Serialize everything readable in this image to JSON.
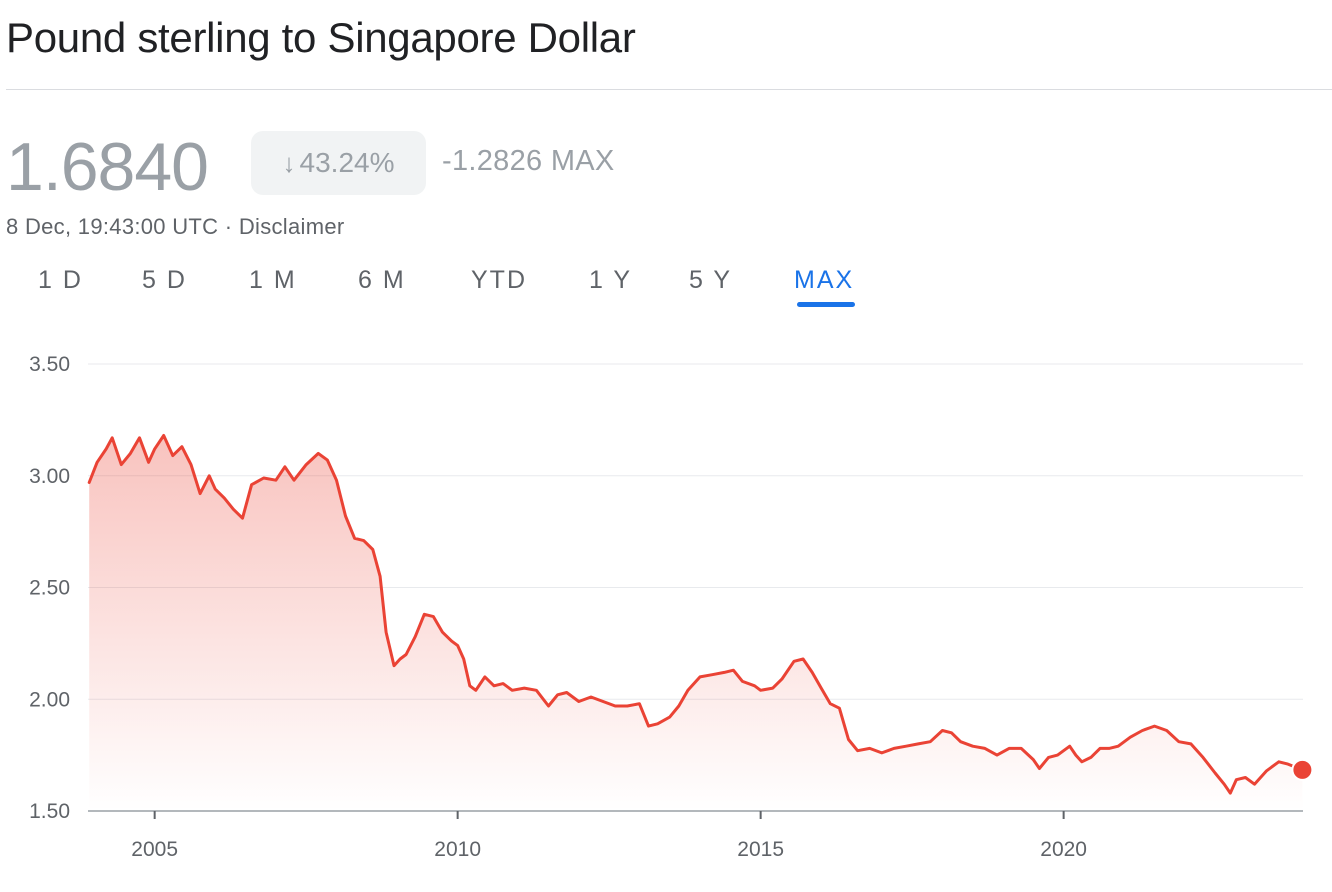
{
  "header": {
    "title": "Pound sterling to Singapore Dollar"
  },
  "quote": {
    "price": "1.6840",
    "arrow_icon": "arrow-down-icon",
    "percent_change": "43.24%",
    "abs_change": "-1.2826 MAX",
    "timestamp": "8 Dec, 19:43:00 UTC",
    "separator": " · ",
    "disclaimer": "Disclaimer"
  },
  "tabs": [
    {
      "label": "1 D"
    },
    {
      "label": "5 D"
    },
    {
      "label": "1 M"
    },
    {
      "label": "6 M"
    },
    {
      "label": "YTD"
    },
    {
      "label": "1 Y"
    },
    {
      "label": "5 Y"
    },
    {
      "label": "MAX",
      "active": true
    }
  ],
  "colors": {
    "line": "#ea4335",
    "accent": "#1a73e8",
    "muted": "#9aa0a6"
  },
  "chart_data": {
    "type": "area",
    "title": "",
    "xlabel": "",
    "ylabel": "",
    "ylim": [
      1.5,
      3.5
    ],
    "xlim": [
      2003.9,
      2023.95
    ],
    "yticks": [
      "3.50",
      "3.00",
      "2.50",
      "2.00",
      "1.50"
    ],
    "xticks": [
      "2005",
      "2010",
      "2015",
      "2020"
    ],
    "grid": true,
    "series": [
      {
        "points": [
          [
            2003.92,
            2.97
          ],
          [
            2004.05,
            3.06
          ],
          [
            2004.2,
            3.12
          ],
          [
            2004.3,
            3.17
          ],
          [
            2004.45,
            3.05
          ],
          [
            2004.6,
            3.1
          ],
          [
            2004.75,
            3.17
          ],
          [
            2004.9,
            3.06
          ],
          [
            2005.0,
            3.12
          ],
          [
            2005.15,
            3.18
          ],
          [
            2005.3,
            3.09
          ],
          [
            2005.45,
            3.13
          ],
          [
            2005.6,
            3.05
          ],
          [
            2005.75,
            2.92
          ],
          [
            2005.9,
            3.0
          ],
          [
            2006.0,
            2.94
          ],
          [
            2006.15,
            2.9
          ],
          [
            2006.3,
            2.85
          ],
          [
            2006.45,
            2.81
          ],
          [
            2006.6,
            2.96
          ],
          [
            2006.8,
            2.99
          ],
          [
            2007.0,
            2.98
          ],
          [
            2007.15,
            3.04
          ],
          [
            2007.3,
            2.98
          ],
          [
            2007.5,
            3.05
          ],
          [
            2007.7,
            3.1
          ],
          [
            2007.85,
            3.07
          ],
          [
            2008.0,
            2.98
          ],
          [
            2008.15,
            2.82
          ],
          [
            2008.3,
            2.72
          ],
          [
            2008.45,
            2.71
          ],
          [
            2008.6,
            2.67
          ],
          [
            2008.72,
            2.55
          ],
          [
            2008.82,
            2.3
          ],
          [
            2008.95,
            2.15
          ],
          [
            2009.05,
            2.18
          ],
          [
            2009.15,
            2.2
          ],
          [
            2009.3,
            2.28
          ],
          [
            2009.45,
            2.38
          ],
          [
            2009.6,
            2.37
          ],
          [
            2009.75,
            2.3
          ],
          [
            2009.9,
            2.26
          ],
          [
            2010.0,
            2.24
          ],
          [
            2010.1,
            2.18
          ],
          [
            2010.2,
            2.06
          ],
          [
            2010.3,
            2.04
          ],
          [
            2010.45,
            2.1
          ],
          [
            2010.6,
            2.06
          ],
          [
            2010.75,
            2.07
          ],
          [
            2010.9,
            2.04
          ],
          [
            2011.1,
            2.05
          ],
          [
            2011.3,
            2.04
          ],
          [
            2011.5,
            1.97
          ],
          [
            2011.65,
            2.02
          ],
          [
            2011.8,
            2.03
          ],
          [
            2012.0,
            1.99
          ],
          [
            2012.2,
            2.01
          ],
          [
            2012.4,
            1.99
          ],
          [
            2012.6,
            1.97
          ],
          [
            2012.8,
            1.97
          ],
          [
            2013.0,
            1.98
          ],
          [
            2013.15,
            1.88
          ],
          [
            2013.3,
            1.89
          ],
          [
            2013.5,
            1.92
          ],
          [
            2013.65,
            1.97
          ],
          [
            2013.8,
            2.04
          ],
          [
            2014.0,
            2.1
          ],
          [
            2014.2,
            2.11
          ],
          [
            2014.4,
            2.12
          ],
          [
            2014.55,
            2.13
          ],
          [
            2014.7,
            2.08
          ],
          [
            2014.9,
            2.06
          ],
          [
            2015.0,
            2.04
          ],
          [
            2015.2,
            2.05
          ],
          [
            2015.35,
            2.09
          ],
          [
            2015.55,
            2.17
          ],
          [
            2015.7,
            2.18
          ],
          [
            2015.85,
            2.12
          ],
          [
            2016.0,
            2.05
          ],
          [
            2016.15,
            1.98
          ],
          [
            2016.3,
            1.96
          ],
          [
            2016.45,
            1.82
          ],
          [
            2016.6,
            1.77
          ],
          [
            2016.8,
            1.78
          ],
          [
            2017.0,
            1.76
          ],
          [
            2017.2,
            1.78
          ],
          [
            2017.4,
            1.79
          ],
          [
            2017.6,
            1.8
          ],
          [
            2017.8,
            1.81
          ],
          [
            2018.0,
            1.86
          ],
          [
            2018.15,
            1.85
          ],
          [
            2018.3,
            1.81
          ],
          [
            2018.5,
            1.79
          ],
          [
            2018.7,
            1.78
          ],
          [
            2018.9,
            1.75
          ],
          [
            2019.1,
            1.78
          ],
          [
            2019.3,
            1.78
          ],
          [
            2019.5,
            1.73
          ],
          [
            2019.6,
            1.69
          ],
          [
            2019.75,
            1.74
          ],
          [
            2019.9,
            1.75
          ],
          [
            2020.1,
            1.79
          ],
          [
            2020.2,
            1.75
          ],
          [
            2020.3,
            1.72
          ],
          [
            2020.45,
            1.74
          ],
          [
            2020.6,
            1.78
          ],
          [
            2020.75,
            1.78
          ],
          [
            2020.9,
            1.79
          ],
          [
            2021.1,
            1.83
          ],
          [
            2021.3,
            1.86
          ],
          [
            2021.5,
            1.88
          ],
          [
            2021.7,
            1.86
          ],
          [
            2021.9,
            1.81
          ],
          [
            2022.1,
            1.8
          ],
          [
            2022.3,
            1.74
          ],
          [
            2022.5,
            1.67
          ],
          [
            2022.65,
            1.62
          ],
          [
            2022.75,
            1.58
          ],
          [
            2022.85,
            1.64
          ],
          [
            2023.0,
            1.65
          ],
          [
            2023.15,
            1.62
          ],
          [
            2023.35,
            1.68
          ],
          [
            2023.55,
            1.72
          ],
          [
            2023.7,
            1.71
          ],
          [
            2023.94,
            1.684
          ]
        ]
      }
    ]
  }
}
